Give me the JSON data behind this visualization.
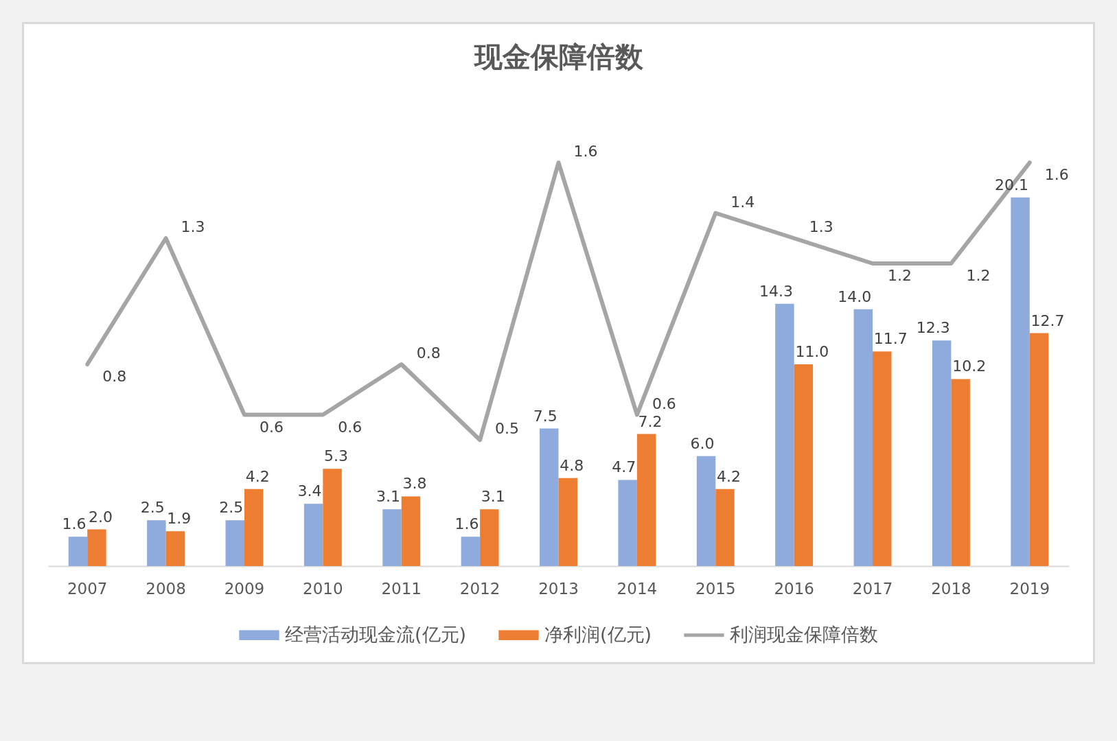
{
  "chart_data": {
    "type": "bar",
    "title": "现金保障倍数",
    "categories": [
      "2007",
      "2008",
      "2009",
      "2010",
      "2011",
      "2012",
      "2013",
      "2014",
      "2015",
      "2016",
      "2017",
      "2018",
      "2019"
    ],
    "series": [
      {
        "name": "经营活动现金流(亿元)",
        "color": "#8faadc",
        "values": [
          1.6,
          2.5,
          2.5,
          3.4,
          3.1,
          1.6,
          7.5,
          4.7,
          6.0,
          14.3,
          14.0,
          12.3,
          20.1
        ],
        "value_labels": [
          "1.6",
          "2.5",
          "2.5",
          "3.4",
          "3.1",
          "1.6",
          "7.5",
          "4.7",
          "6.0",
          "14.3",
          "14.0",
          "12.3",
          "20.1"
        ]
      },
      {
        "name": "净利润(亿元)",
        "color": "#ed7d31",
        "values": [
          2.0,
          1.9,
          4.2,
          5.3,
          3.8,
          3.1,
          4.8,
          7.2,
          4.2,
          11.0,
          11.7,
          10.2,
          12.7
        ],
        "value_labels": [
          "2.0",
          "1.9",
          "4.2",
          "5.3",
          "3.8",
          "3.1",
          "4.8",
          "7.2",
          "4.2",
          "11.0",
          "11.7",
          "10.2",
          "12.7"
        ]
      },
      {
        "name": "利润现金保障倍数",
        "type": "line",
        "axis": "y2",
        "color": "#a5a5a5",
        "values": [
          0.8,
          1.3,
          0.6,
          0.6,
          0.8,
          0.5,
          1.6,
          0.6,
          1.4,
          1.3,
          1.2,
          1.2,
          1.6
        ],
        "value_labels": [
          "0.8",
          "1.3",
          "0.6",
          "0.6",
          "0.8",
          "0.5",
          "1.6",
          "0.6",
          "1.4",
          "1.3",
          "1.2",
          "1.2",
          "1.6"
        ]
      }
    ],
    "tick_labels": "x",
    "legend": "bottom"
  }
}
